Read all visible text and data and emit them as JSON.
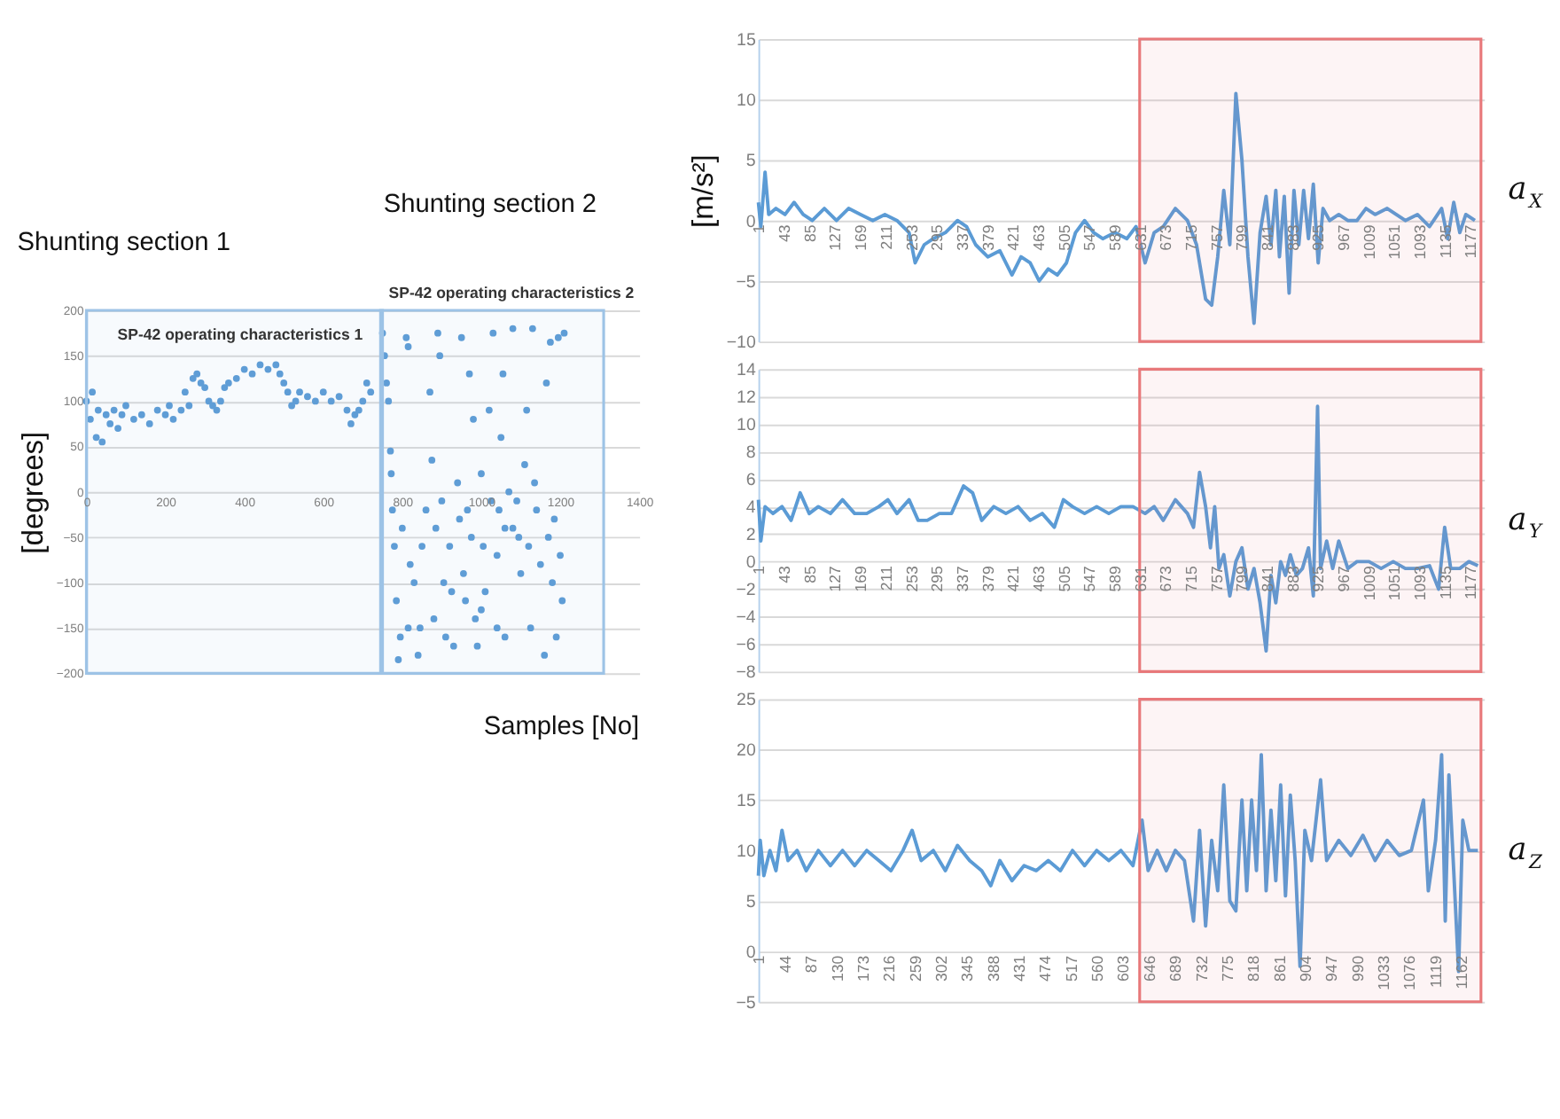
{
  "chart_data": [
    {
      "type": "scatter",
      "title": "SP-42 operating characteristics 1",
      "subtitle": "SP-42 operating characteristics 2",
      "annotations": [
        "Shunting section 1",
        "Shunting section 2"
      ],
      "xlabel": "Samples [No]",
      "ylabel": "[degrees]",
      "xlim": [
        0,
        1400
      ],
      "xticks": [
        0,
        200,
        400,
        600,
        800,
        1000,
        1200,
        1400
      ],
      "ylim": [
        -200,
        200
      ],
      "yticks": [
        -200,
        -150,
        -100,
        -50,
        0,
        50,
        100,
        150,
        200
      ],
      "grid": "y",
      "marker": "circle",
      "bands": [
        {
          "axis": "x",
          "from": 0,
          "to": 750,
          "color": "#9dc3e6"
        },
        {
          "axis": "x",
          "from": 745,
          "to": 1310,
          "color": "#9dc3e6"
        }
      ],
      "series": [
        {
          "color": "#5b9bd5",
          "x": [
            0,
            10,
            15,
            25,
            30,
            40,
            50,
            60,
            70,
            80,
            90,
            100,
            120,
            140,
            160,
            180,
            200,
            210,
            220,
            240,
            250,
            260,
            270,
            280,
            290,
            300,
            310,
            320,
            330,
            340,
            350,
            360,
            380,
            400,
            420,
            440,
            460,
            480,
            490,
            500,
            510,
            520,
            530,
            540,
            560,
            580,
            600,
            620,
            640,
            660,
            670,
            680,
            690,
            700,
            710,
            720
          ],
          "values": [
            100,
            80,
            110,
            60,
            90,
            55,
            85,
            75,
            90,
            70,
            85,
            95,
            80,
            85,
            75,
            90,
            85,
            95,
            80,
            90,
            110,
            95,
            125,
            130,
            120,
            115,
            100,
            95,
            90,
            100,
            115,
            120,
            125,
            135,
            130,
            140,
            135,
            140,
            130,
            120,
            110,
            95,
            100,
            110,
            105,
            100,
            110,
            100,
            105,
            90,
            75,
            85,
            90,
            100,
            120,
            110
          ]
        },
        {
          "color": "#5b9bd5",
          "x": [
            750,
            755,
            760,
            765,
            770,
            772,
            775,
            780,
            785,
            790,
            795,
            800,
            810,
            815,
            820,
            830,
            840,
            845,
            850,
            860,
            870,
            875,
            880,
            890,
            895,
            900,
            905,
            910,
            920,
            930,
            940,
            945,
            950,
            955,
            960,
            970,
            975,
            980,
            985,
            990,
            1000,
            1005,
            1010,
            1020,
            1025,
            1030,
            1040,
            1045,
            1050,
            1055,
            1060,
            1070,
            1080,
            1090,
            1100,
            1110,
            1115,
            1120,
            1125,
            1130,
            1140,
            1150,
            1160,
            1165,
            1170,
            1180,
            1190,
            1195,
            1200,
            1205,
            1210,
            1080,
            1175,
            1000,
            1095,
            1060,
            1040,
            885,
            925,
            965,
            1135,
            1185,
            815
          ],
          "values": [
            175,
            150,
            120,
            100,
            45,
            20,
            -20,
            -60,
            -120,
            -185,
            -160,
            -40,
            170,
            160,
            -80,
            -100,
            -180,
            -150,
            -60,
            -20,
            110,
            35,
            -140,
            175,
            150,
            -10,
            -100,
            -160,
            -60,
            -170,
            10,
            -30,
            170,
            -90,
            -120,
            130,
            -50,
            80,
            -140,
            -170,
            20,
            -60,
            -110,
            90,
            -10,
            175,
            -150,
            -20,
            60,
            130,
            -160,
            0,
            -40,
            -10,
            -90,
            30,
            90,
            -60,
            -150,
            180,
            -20,
            -80,
            -180,
            120,
            -50,
            -100,
            -160,
            170,
            -70,
            -120,
            175,
            180,
            165,
            -130,
            -50,
            -40,
            -70,
            -40,
            -110,
            -20,
            10,
            -30,
            -150
          ]
        }
      ]
    },
    {
      "type": "line",
      "ylabel": "[m/s²]",
      "xlim": [
        1,
        1200
      ],
      "xticks": [
        1,
        43,
        85,
        127,
        169,
        211,
        253,
        295,
        337,
        379,
        421,
        463,
        505,
        547,
        589,
        631,
        673,
        715,
        757,
        799,
        841,
        883,
        925,
        967,
        1009,
        1051,
        1093,
        1135,
        1177
      ],
      "ylim": [
        -10,
        15
      ],
      "yticks": [
        -10,
        -5,
        0,
        5,
        10,
        15
      ],
      "grid": "y",
      "marker": "none",
      "line_style": "solid",
      "bands": [
        {
          "axis": "x",
          "from": 631,
          "to": 1195,
          "color": "#e8787a"
        }
      ],
      "series": [
        {
          "name": "a$_{X}$",
          "color": "#5b9bd5",
          "x": [
            1,
            5,
            12,
            18,
            30,
            45,
            60,
            75,
            90,
            110,
            130,
            150,
            170,
            190,
            210,
            230,
            250,
            260,
            275,
            290,
            310,
            330,
            345,
            360,
            380,
            400,
            420,
            435,
            450,
            465,
            480,
            495,
            510,
            525,
            540,
            555,
            570,
            590,
            610,
            625,
            640,
            655,
            670,
            690,
            710,
            725,
            740,
            750,
            760,
            770,
            780,
            790,
            800,
            810,
            820,
            830,
            840,
            848,
            856,
            862,
            870,
            878,
            886,
            894,
            902,
            910,
            918,
            926,
            934,
            945,
            960,
            975,
            990,
            1005,
            1020,
            1040,
            1055,
            1070,
            1090,
            1110,
            1130,
            1140,
            1150,
            1160,
            1170,
            1185
          ],
          "values": [
            1.5,
            -0.5,
            4,
            0.5,
            1,
            0.5,
            1.5,
            0.5,
            0,
            1,
            0,
            1,
            0.5,
            0,
            0.5,
            0,
            -1,
            -3.5,
            -2,
            -1.5,
            -1,
            0,
            -0.5,
            -2,
            -3,
            -2.5,
            -4.5,
            -3,
            -3.5,
            -5,
            -4,
            -4.5,
            -3.5,
            -1,
            0,
            -1,
            -1.5,
            -1,
            -1.5,
            -0.5,
            -3.5,
            -1,
            -0.5,
            1,
            0,
            -2,
            -6.5,
            -7,
            -3,
            2.5,
            -2,
            10.5,
            5,
            -3,
            -8.5,
            -1,
            2,
            -2,
            2.5,
            -3,
            2,
            -6,
            2.5,
            -2,
            2.5,
            -1.5,
            3,
            -3.5,
            1,
            0,
            0.5,
            0,
            0,
            1,
            0.5,
            1,
            0.5,
            0,
            0.5,
            -0.5,
            1,
            -1.5,
            1.5,
            -1,
            0.5,
            0
          ]
        }
      ]
    },
    {
      "type": "line",
      "xlim": [
        1,
        1200
      ],
      "xticks": [
        1,
        43,
        85,
        127,
        169,
        211,
        253,
        295,
        337,
        379,
        421,
        463,
        505,
        547,
        589,
        631,
        673,
        715,
        757,
        799,
        841,
        883,
        925,
        967,
        1009,
        1051,
        1093,
        1135,
        1177
      ],
      "ylim": [
        -8,
        14
      ],
      "yticks": [
        -8,
        -6,
        -4,
        -2,
        0,
        2,
        4,
        6,
        8,
        10,
        12,
        14
      ],
      "grid": "y",
      "marker": "none",
      "line_style": "solid",
      "bands": [
        {
          "axis": "x",
          "from": 631,
          "to": 1195,
          "color": "#e8787a"
        }
      ],
      "series": [
        {
          "name": "a$_{Y}$",
          "color": "#5b9bd5",
          "x": [
            1,
            5,
            12,
            25,
            40,
            55,
            70,
            85,
            100,
            120,
            140,
            160,
            180,
            200,
            215,
            230,
            250,
            265,
            280,
            300,
            320,
            340,
            355,
            370,
            390,
            410,
            430,
            450,
            470,
            490,
            505,
            520,
            540,
            560,
            580,
            600,
            620,
            640,
            655,
            670,
            690,
            710,
            720,
            730,
            740,
            748,
            755,
            762,
            770,
            780,
            790,
            800,
            810,
            820,
            830,
            840,
            848,
            856,
            864,
            872,
            880,
            890,
            900,
            910,
            918,
            925,
            930,
            940,
            950,
            960,
            975,
            990,
            1010,
            1030,
            1050,
            1070,
            1090,
            1110,
            1125,
            1135,
            1145,
            1160,
            1175,
            1190
          ],
          "values": [
            4.5,
            1.5,
            4,
            3.5,
            4,
            3,
            5,
            3.5,
            4,
            3.5,
            4.5,
            3.5,
            3.5,
            4,
            4.5,
            3.5,
            4.5,
            3,
            3,
            3.5,
            3.5,
            5.5,
            5,
            3,
            4,
            3.5,
            4,
            3,
            3.5,
            2.5,
            4.5,
            4,
            3.5,
            4,
            3.5,
            4,
            4,
            3.5,
            4,
            3,
            4.5,
            3.5,
            2.5,
            6.5,
            4,
            1,
            4,
            -0.5,
            0.5,
            -2.5,
            0,
            1,
            -2,
            -0.5,
            -3,
            -6.5,
            -1,
            -3,
            0,
            -1,
            0.5,
            -1,
            -0.5,
            1,
            -2.5,
            11.3,
            -0.5,
            1.5,
            -0.5,
            1.5,
            -0.5,
            0,
            0,
            -0.5,
            0,
            -0.5,
            -0.5,
            -0.3,
            -2,
            2.5,
            -0.5,
            -0.5,
            0,
            -0.3
          ]
        }
      ]
    },
    {
      "type": "line",
      "xlim": [
        1,
        1200
      ],
      "xticks": [
        1,
        44,
        87,
        130,
        173,
        216,
        259,
        302,
        345,
        388,
        431,
        474,
        517,
        560,
        603,
        646,
        689,
        732,
        775,
        818,
        861,
        904,
        947,
        990,
        1033,
        1076,
        1119,
        1162
      ],
      "ylim": [
        -5,
        25
      ],
      "yticks": [
        -5,
        0,
        5,
        10,
        15,
        20,
        25
      ],
      "grid": "y",
      "marker": "none",
      "line_style": "solid",
      "bands": [
        {
          "axis": "x",
          "from": 631,
          "to": 1195,
          "color": "#e8787a"
        }
      ],
      "series": [
        {
          "name": "a$_{Z}$",
          "color": "#5b9bd5",
          "x": [
            1,
            4,
            10,
            20,
            30,
            40,
            50,
            65,
            80,
            100,
            120,
            140,
            160,
            180,
            200,
            220,
            240,
            255,
            270,
            290,
            310,
            330,
            350,
            370,
            385,
            400,
            420,
            440,
            460,
            480,
            500,
            520,
            540,
            560,
            580,
            600,
            620,
            635,
            645,
            660,
            675,
            690,
            705,
            720,
            730,
            740,
            750,
            760,
            770,
            780,
            790,
            800,
            808,
            816,
            824,
            832,
            840,
            848,
            856,
            864,
            872,
            880,
            888,
            896,
            904,
            915,
            930,
            940,
            960,
            980,
            1000,
            1020,
            1040,
            1060,
            1080,
            1100,
            1108,
            1120,
            1130,
            1136,
            1142,
            1150,
            1158,
            1165,
            1175,
            1190
          ],
          "values": [
            7.5,
            11,
            7.5,
            10,
            8,
            12,
            9,
            10,
            8,
            10,
            8.5,
            10,
            8.5,
            10,
            9,
            8,
            10,
            12,
            9,
            10,
            8,
            10.5,
            9,
            8,
            6.5,
            9,
            7,
            8.5,
            8,
            9,
            8,
            10,
            8.5,
            10,
            9,
            10,
            8.5,
            13,
            8,
            10,
            8,
            10,
            9,
            3,
            12,
            2.5,
            11,
            6,
            16.5,
            5,
            4,
            15,
            6,
            15,
            8,
            19.5,
            6,
            14,
            7,
            16.5,
            5.5,
            15.5,
            9,
            -1.5,
            12,
            9,
            17,
            9,
            11,
            9.5,
            11.5,
            9,
            11,
            9.5,
            10,
            15,
            6,
            11,
            19.5,
            3,
            17.5,
            8,
            -2,
            13,
            10,
            10
          ]
        }
      ]
    }
  ]
}
